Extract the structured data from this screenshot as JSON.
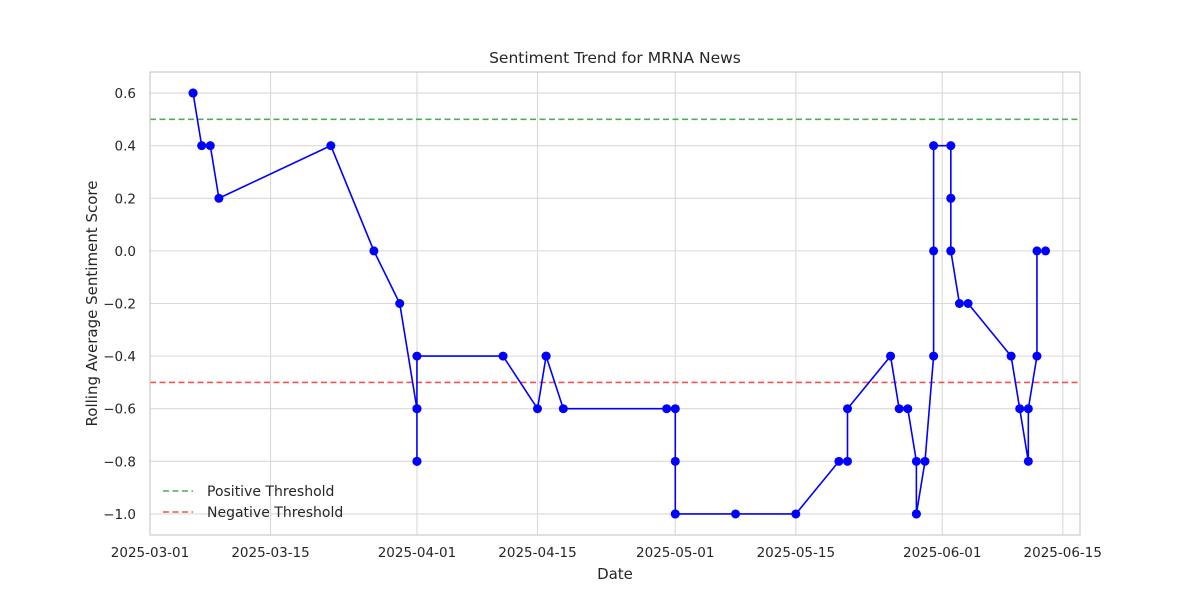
{
  "chart_data": {
    "type": "line",
    "title": "Sentiment Trend for MRNA News",
    "xlabel": "Date",
    "ylabel": "Rolling Average Sentiment Score",
    "xlim": [
      "2025-03-01",
      "2025-06-17"
    ],
    "ylim": [
      -1.08,
      0.68
    ],
    "grid": true,
    "legend_position": "bottom-left",
    "x_ticks": [
      "2025-03-01",
      "2025-03-15",
      "2025-04-01",
      "2025-04-15",
      "2025-05-01",
      "2025-05-15",
      "2025-06-01",
      "2025-06-15"
    ],
    "y_ticks": [
      "0.6",
      "0.4",
      "0.2",
      "0.0",
      "-0.2",
      "-0.4",
      "-0.6",
      "-0.8",
      "-1.0"
    ],
    "series": [
      {
        "color": "#0000ff",
        "points": [
          [
            "2025-03-06",
            0.6
          ],
          [
            "2025-03-06",
            0.6
          ],
          [
            "2025-03-07",
            0.4
          ],
          [
            "2025-03-08",
            0.4
          ],
          [
            "2025-03-09",
            0.2
          ],
          [
            "2025-03-22",
            0.4
          ],
          [
            "2025-03-27",
            0.0
          ],
          [
            "2025-03-30",
            -0.2
          ],
          [
            "2025-04-01",
            -0.6
          ],
          [
            "2025-04-01",
            -0.8
          ],
          [
            "2025-04-01",
            -0.8
          ],
          [
            "2025-04-01",
            -0.6
          ],
          [
            "2025-04-01",
            -0.4
          ],
          [
            "2025-04-11",
            -0.4
          ],
          [
            "2025-04-15",
            -0.6
          ],
          [
            "2025-04-16",
            -0.4
          ],
          [
            "2025-04-16",
            -0.4
          ],
          [
            "2025-04-18",
            -0.6
          ],
          [
            "2025-04-30",
            -0.6
          ],
          [
            "2025-05-01",
            -0.6
          ],
          [
            "2025-05-01",
            -0.8
          ],
          [
            "2025-05-01",
            -1.0
          ],
          [
            "2025-05-01",
            -1.0
          ],
          [
            "2025-05-08",
            -1.0
          ],
          [
            "2025-05-15",
            -1.0
          ],
          [
            "2025-05-20",
            -0.8
          ],
          [
            "2025-05-21",
            -0.8
          ],
          [
            "2025-05-21",
            -0.6
          ],
          [
            "2025-05-26",
            -0.4
          ],
          [
            "2025-05-27",
            -0.6
          ],
          [
            "2025-05-28",
            -0.6
          ],
          [
            "2025-05-29",
            -0.8
          ],
          [
            "2025-05-29",
            -1.0
          ],
          [
            "2025-05-29",
            -1.0
          ],
          [
            "2025-05-30",
            -0.8
          ],
          [
            "2025-05-31",
            -0.4
          ],
          [
            "2025-05-31",
            0.0
          ],
          [
            "2025-05-31",
            0.4
          ],
          [
            "2025-06-02",
            0.4
          ],
          [
            "2025-06-02",
            0.2
          ],
          [
            "2025-06-02",
            0.0
          ],
          [
            "2025-06-02",
            0.2
          ],
          [
            "2025-06-02",
            0.0
          ],
          [
            "2025-06-03",
            -0.2
          ],
          [
            "2025-06-04",
            -0.2
          ],
          [
            "2025-06-09",
            -0.4
          ],
          [
            "2025-06-10",
            -0.6
          ],
          [
            "2025-06-11",
            -0.8
          ],
          [
            "2025-06-11",
            -0.6
          ],
          [
            "2025-06-12",
            -0.4
          ],
          [
            "2025-06-12",
            0.0
          ],
          [
            "2025-06-13",
            0.0
          ]
        ]
      }
    ],
    "thresholds": [
      {
        "name": "Positive Threshold",
        "y": 0.5,
        "color": "#4caf50",
        "style": "dashed"
      },
      {
        "name": "Negative Threshold",
        "y": -0.5,
        "color": "#ef5350",
        "style": "dashed"
      }
    ]
  }
}
